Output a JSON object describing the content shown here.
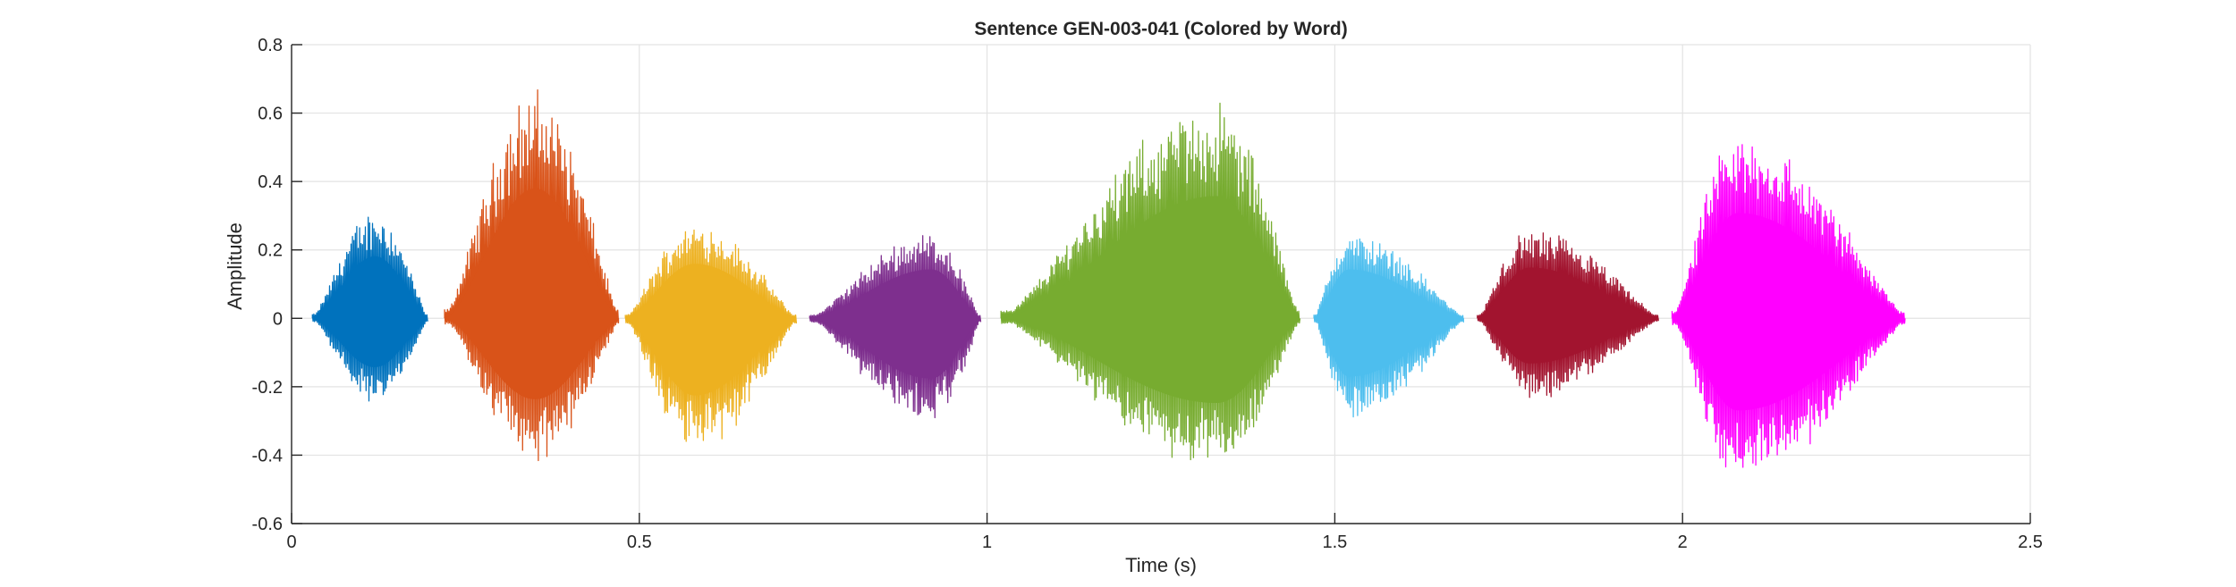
{
  "chart_data": {
    "type": "line",
    "title": "Sentence GEN-003-041 (Colored by Word)",
    "xlabel": "Time (s)",
    "ylabel": "Amplitude",
    "xlim": [
      0,
      2.5
    ],
    "ylim": [
      -0.6,
      0.8
    ],
    "xticks": [
      0,
      0.5,
      1,
      1.5,
      2,
      2.5
    ],
    "xtick_labels": [
      "0",
      "0.5",
      "1",
      "1.5",
      "2",
      "2.5"
    ],
    "yticks": [
      -0.6,
      -0.4,
      -0.2,
      0,
      0.2,
      0.4,
      0.6,
      0.8
    ],
    "ytick_labels": [
      "-0.6",
      "-0.4",
      "-0.2",
      "0",
      "0.2",
      "0.4",
      "0.6",
      "0.8"
    ],
    "grid": true,
    "legend": false,
    "series": [
      {
        "color": "#0072BD",
        "start": 0.03,
        "end": 0.195,
        "peak_time": 0.12,
        "max": 0.33,
        "min": -0.26
      },
      {
        "color": "#D95319",
        "start": 0.22,
        "end": 0.47,
        "peak_time": 0.35,
        "max": 0.69,
        "min": -0.43
      },
      {
        "color": "#EDB120",
        "start": 0.48,
        "end": 0.725,
        "peak_time": 0.58,
        "max": 0.29,
        "min": -0.41
      },
      {
        "color": "#7E2F8E",
        "start": 0.745,
        "end": 0.99,
        "peak_time": 0.92,
        "max": 0.26,
        "min": -0.32
      },
      {
        "color": "#77AC30",
        "start": 1.02,
        "end": 1.45,
        "peak_time": 1.33,
        "max": 0.65,
        "min": -0.45
      },
      {
        "color": "#4DBEEE",
        "start": 1.47,
        "end": 1.685,
        "peak_time": 1.52,
        "max": 0.26,
        "min": -0.31
      },
      {
        "color": "#A2142F",
        "start": 1.705,
        "end": 1.965,
        "peak_time": 1.78,
        "max": 0.27,
        "min": -0.24
      },
      {
        "color": "#FF00FF",
        "start": 1.985,
        "end": 2.32,
        "peak_time": 2.08,
        "max": 0.56,
        "min": -0.49
      }
    ]
  }
}
